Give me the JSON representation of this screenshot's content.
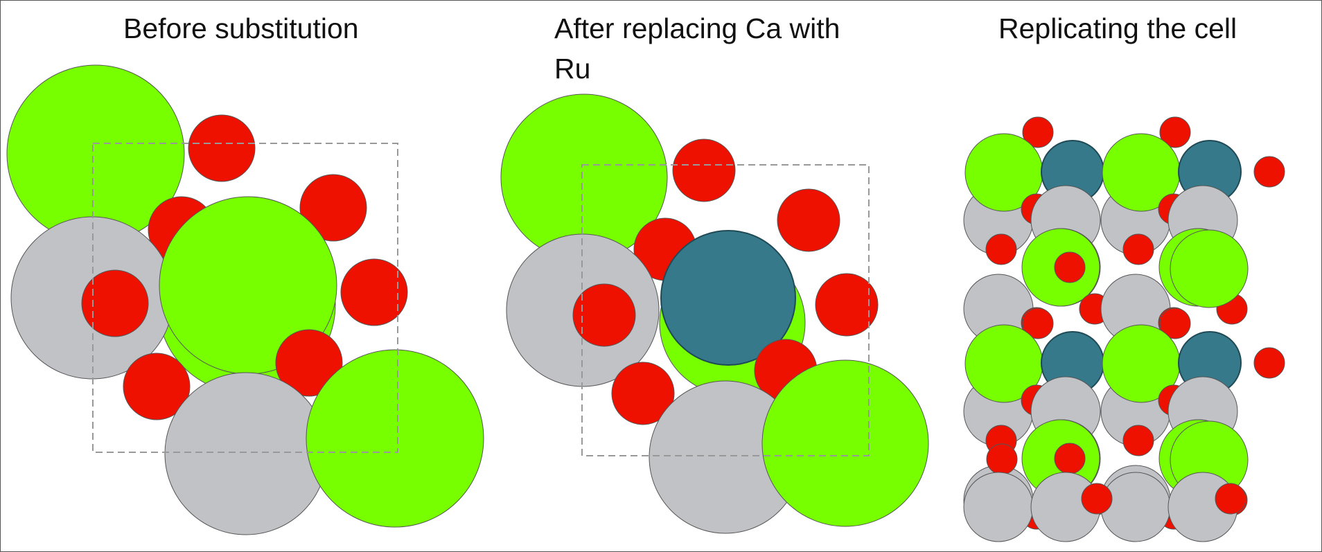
{
  "titles": {
    "before": "Before substitution",
    "after": "After replacing Ca with Ru",
    "replicate": "Replicating the cell"
  },
  "colors": {
    "green_atom": "#77ff00",
    "red_atom": "#ee1100",
    "gray_atom": "#c0c2c6",
    "ru_atom": "#35798a",
    "cell_border": "#999999"
  }
}
